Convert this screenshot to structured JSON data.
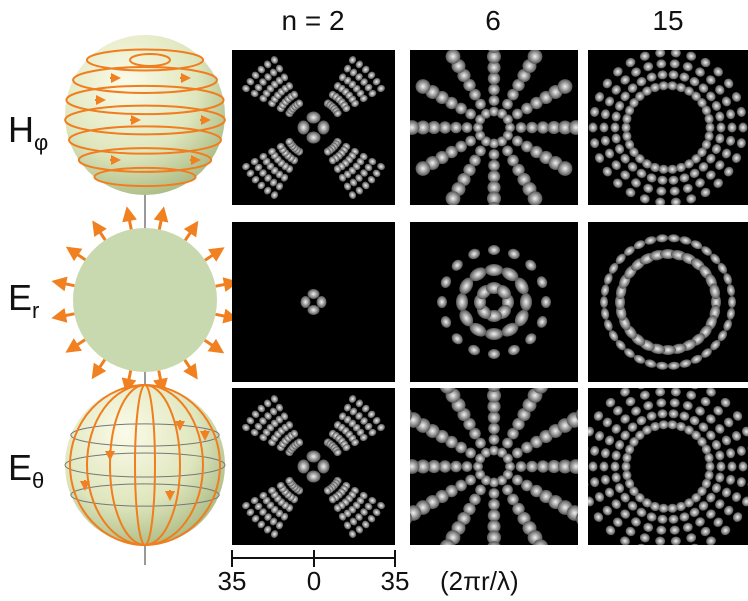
{
  "columns": [
    {
      "label": "n = 2"
    },
    {
      "label": "6"
    },
    {
      "label": "15"
    }
  ],
  "rows": [
    {
      "symbol": "H",
      "subscript": "φ"
    },
    {
      "symbol": "E",
      "subscript": "r"
    },
    {
      "symbol": "E",
      "subscript": "θ"
    }
  ],
  "axis": {
    "ticks": [
      "35",
      "0",
      "35"
    ],
    "unit": "(2πr/λ)"
  }
}
